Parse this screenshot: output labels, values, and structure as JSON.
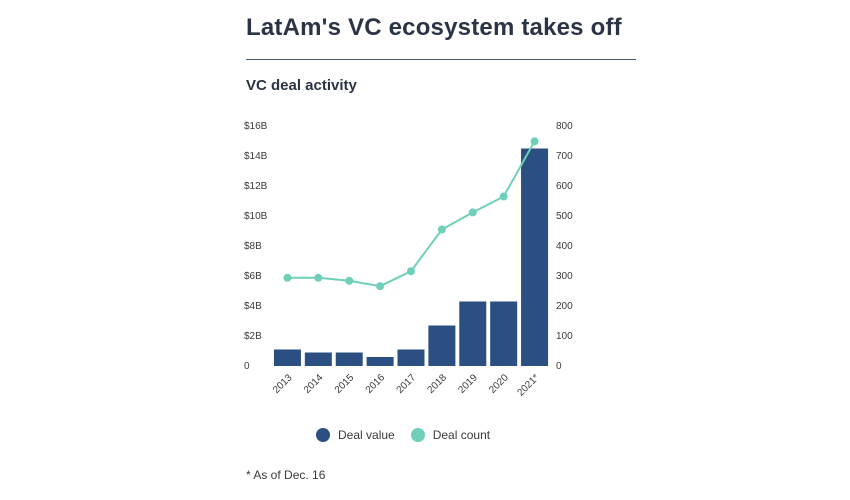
{
  "title": "LatAm's VC ecosystem takes off",
  "subtitle": "VC deal activity",
  "footnote": "* As of Dec. 16",
  "legend": {
    "deal_value": "Deal value",
    "deal_count": "Deal count"
  },
  "colors": {
    "deal_value": "#2b4f81",
    "deal_count": "#6fcfb9"
  },
  "chart_data": {
    "type": "bar",
    "categories": [
      "2013",
      "2014",
      "2015",
      "2016",
      "2017",
      "2018",
      "2019",
      "2020",
      "2021*"
    ],
    "series": [
      {
        "name": "Deal value",
        "type": "bar",
        "axis": "left",
        "values": [
          1.1,
          0.9,
          0.9,
          0.6,
          1.1,
          2.7,
          4.3,
          4.3,
          14.5
        ]
      },
      {
        "name": "Deal count",
        "type": "line",
        "axis": "right",
        "values": [
          294,
          294,
          284,
          266,
          316,
          455,
          512,
          565,
          749
        ]
      }
    ],
    "y_left": {
      "range": [
        0,
        16
      ],
      "ticks": [
        0,
        2,
        4,
        6,
        8,
        10,
        12,
        14,
        16
      ],
      "tick_labels": [
        "0",
        "$2B",
        "$4B",
        "$6B",
        "$8B",
        "$10B",
        "$12B",
        "$14B",
        "$16B"
      ]
    },
    "y_right": {
      "range": [
        0,
        800
      ],
      "ticks": [
        0,
        100,
        200,
        300,
        400,
        500,
        600,
        700,
        800
      ],
      "tick_labels": [
        "0",
        "100",
        "200",
        "300",
        "400",
        "500",
        "600",
        "700",
        "800"
      ]
    },
    "grid": false,
    "legend_position": "bottom"
  }
}
